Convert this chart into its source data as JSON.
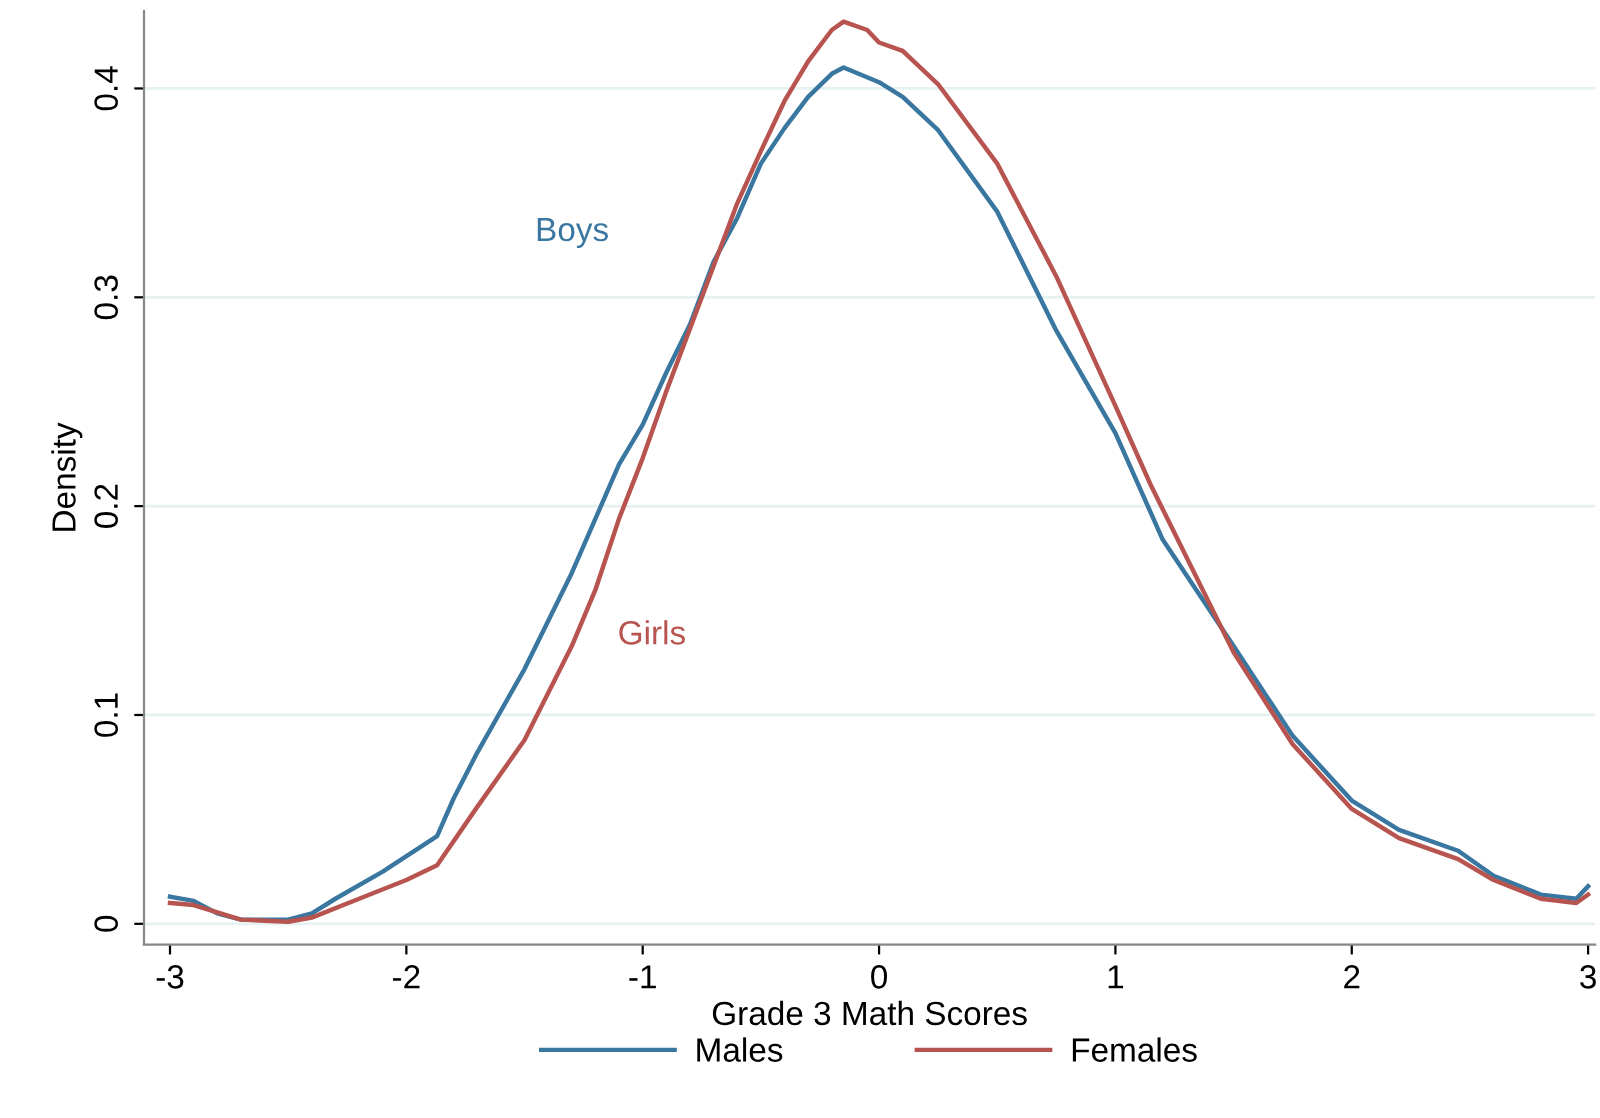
{
  "chart_data": {
    "type": "line",
    "xlabel": "Grade 3 Math Scores",
    "ylabel": "Density",
    "xlim": [
      -3.11,
      3.03
    ],
    "ylim": [
      -0.01,
      0.437
    ],
    "xticks": [
      -3,
      -2,
      -1,
      0,
      1,
      2,
      3
    ],
    "yticks": [
      0,
      0.1,
      0.2,
      0.3,
      0.4
    ],
    "grid": "y",
    "legend": "bottom",
    "line_style": "solid",
    "marker": "none",
    "annotations": [
      "Boys",
      "Girls"
    ],
    "series": [
      {
        "name": "Males",
        "color": "#3a77a0",
        "x": [
          -3,
          -2.9,
          -2.8,
          -2.7,
          -2.5,
          -2.4,
          -2.3,
          -2.1,
          -1.87,
          -1.8,
          -1.7,
          -1.5,
          -1.3,
          -1.1,
          -1,
          -0.9,
          -0.8,
          -0.7,
          -0.6,
          -0.5,
          -0.4,
          -0.3,
          -0.2,
          -0.15,
          0,
          0.1,
          0.25,
          0.5,
          0.75,
          1,
          1.2,
          1.5,
          1.75,
          2,
          2.2,
          2.45,
          2.6,
          2.8,
          2.95,
          3
        ],
        "values": [
          0.013,
          0.011,
          0.005,
          0.002,
          0.002,
          0.005,
          0.012,
          0.025,
          0.042,
          0.06,
          0.082,
          0.122,
          0.168,
          0.22,
          0.239,
          0.264,
          0.287,
          0.317,
          0.338,
          0.364,
          0.381,
          0.396,
          0.407,
          0.41,
          0.403,
          0.396,
          0.38,
          0.341,
          0.284,
          0.235,
          0.184,
          0.133,
          0.09,
          0.059,
          0.045,
          0.035,
          0.023,
          0.014,
          0.012,
          0.018
        ]
      },
      {
        "name": "Females",
        "color": "#b85450",
        "x": [
          -3,
          -2.9,
          -2.7,
          -2.5,
          -2.4,
          -2.2,
          -2,
          -1.87,
          -1.7,
          -1.5,
          -1.3,
          -1.2,
          -1.1,
          -1,
          -0.9,
          -0.8,
          -0.7,
          -0.6,
          -0.5,
          -0.4,
          -0.3,
          -0.2,
          -0.15,
          -0.05,
          0,
          0.1,
          0.25,
          0.5,
          0.75,
          1,
          1.15,
          1.5,
          1.75,
          2,
          2.2,
          2.45,
          2.6,
          2.8,
          2.95,
          3
        ],
        "values": [
          0.01,
          0.009,
          0.002,
          0.001,
          0.003,
          0.012,
          0.021,
          0.028,
          0.056,
          0.088,
          0.133,
          0.16,
          0.194,
          0.223,
          0.255,
          0.285,
          0.315,
          0.345,
          0.37,
          0.394,
          0.413,
          0.428,
          0.432,
          0.428,
          0.422,
          0.418,
          0.402,
          0.364,
          0.31,
          0.248,
          0.21,
          0.13,
          0.086,
          0.055,
          0.041,
          0.031,
          0.021,
          0.012,
          0.01,
          0.014
        ]
      }
    ]
  }
}
